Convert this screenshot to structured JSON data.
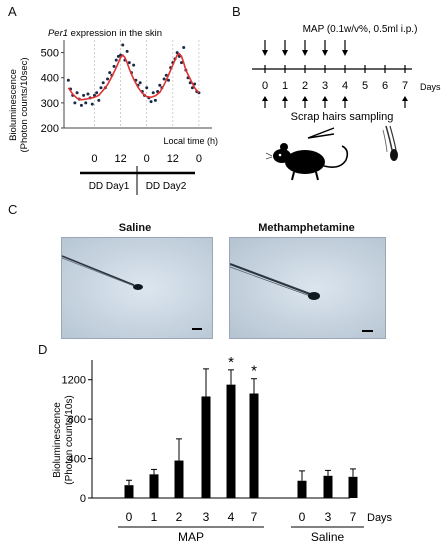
{
  "panels": {
    "a": {
      "label": "A",
      "title_italic": "Per1",
      "title_rest": " expression in the skin",
      "ylabel_line1": "Bioluminescence",
      "ylabel_line2": "(Photon counts/10sec)",
      "yticks": [
        "500",
        "400",
        "300",
        "200"
      ],
      "xticks": [
        "0",
        "12",
        "0",
        "12",
        "0"
      ],
      "xlabel": "Local time (h)",
      "dd_day1": "DD Day1",
      "dd_day2": "DD Day2"
    },
    "b": {
      "label": "B",
      "header": "MAP (0.1w/v%, 0.5ml i.p.)",
      "days": [
        "0",
        "1",
        "2",
        "3",
        "4",
        "5",
        "6",
        "7"
      ],
      "days_unit": "Days",
      "sampling_label": "Scrap hairs sampling",
      "injection_days": [
        "0",
        "1",
        "2",
        "3",
        "4"
      ],
      "sampling_days": [
        "0",
        "1",
        "2",
        "3",
        "4",
        "7"
      ]
    },
    "c": {
      "label": "C",
      "left_title": "Saline",
      "right_title": "Methamphetamine"
    },
    "d": {
      "label": "D"
    }
  },
  "chart_data": [
    {
      "type": "line",
      "panel": "A",
      "title": "Per1 expression in the skin",
      "ylabel": "Bioluminescence (Photon counts/10sec)",
      "xlabel": "Local time (h)",
      "ylim": [
        200,
        550
      ],
      "xlim": [
        -14,
        54
      ],
      "x_tick_labels": [
        "0",
        "12",
        "0",
        "12",
        "0"
      ],
      "x_tick_values": [
        0,
        12,
        24,
        36,
        48
      ],
      "y_tick_values": [
        200,
        300,
        400,
        500
      ],
      "day_groups": [
        "DD Day1",
        "DD Day2"
      ],
      "series": [
        {
          "style": "dots",
          "color": "#1a2a44",
          "x": [
            -12,
            -11,
            -10,
            -9,
            -8,
            -7,
            -6,
            -5,
            -4,
            -3,
            -2,
            -1,
            0,
            1,
            2,
            3,
            4,
            5,
            6,
            7,
            8,
            9,
            10,
            11,
            12,
            13,
            14,
            15,
            16,
            17,
            18,
            19,
            20,
            21,
            22,
            23,
            24,
            25,
            26,
            27,
            28,
            29,
            30,
            31,
            32,
            33,
            34,
            35,
            36,
            37,
            38,
            39,
            40,
            41,
            42,
            43,
            44,
            45,
            46,
            47,
            48
          ],
          "y": [
            390,
            355,
            330,
            300,
            340,
            315,
            290,
            330,
            300,
            335,
            320,
            295,
            330,
            340,
            310,
            360,
            380,
            360,
            395,
            420,
            410,
            445,
            470,
            485,
            490,
            530,
            470,
            505,
            460,
            420,
            450,
            390,
            370,
            380,
            345,
            330,
            360,
            320,
            305,
            340,
            310,
            345,
            370,
            360,
            395,
            410,
            390,
            440,
            460,
            475,
            500,
            485,
            460,
            520,
            430,
            400,
            380,
            360,
            375,
            345,
            340
          ]
        },
        {
          "style": "line",
          "color": "#e23232",
          "x": [
            -12,
            -10,
            -8,
            -6,
            -4,
            -2,
            0,
            2,
            4,
            6,
            8,
            10,
            12,
            13,
            14,
            15,
            16,
            18,
            20,
            22,
            24,
            26,
            28,
            30,
            32,
            34,
            36,
            38,
            39,
            40,
            41,
            42,
            44,
            46,
            48
          ],
          "y": [
            360,
            335,
            318,
            312,
            315,
            318,
            322,
            330,
            350,
            372,
            405,
            440,
            480,
            490,
            480,
            460,
            435,
            395,
            362,
            338,
            325,
            322,
            328,
            342,
            372,
            410,
            450,
            490,
            495,
            485,
            460,
            430,
            395,
            360,
            340
          ]
        }
      ]
    },
    {
      "type": "bar",
      "panel": "D",
      "ylabel": "Bioluminescence (Photon counts/10s)",
      "xlabel": "Days",
      "ylim": [
        0,
        1400
      ],
      "yticks": [
        0,
        400,
        800,
        1200
      ],
      "groups": [
        {
          "name": "MAP",
          "categories": [
            "0",
            "1",
            "2",
            "3",
            "4",
            "7"
          ],
          "values": [
            130,
            240,
            380,
            1030,
            1150,
            1060
          ],
          "errors": [
            50,
            50,
            220,
            280,
            150,
            150
          ],
          "significant": [
            false,
            false,
            false,
            false,
            true,
            true
          ]
        },
        {
          "name": "Saline",
          "categories": [
            "0",
            "3",
            "7"
          ],
          "values": [
            175,
            225,
            215
          ],
          "errors": [
            100,
            55,
            80
          ]
        }
      ],
      "significance_marker": "*"
    }
  ]
}
